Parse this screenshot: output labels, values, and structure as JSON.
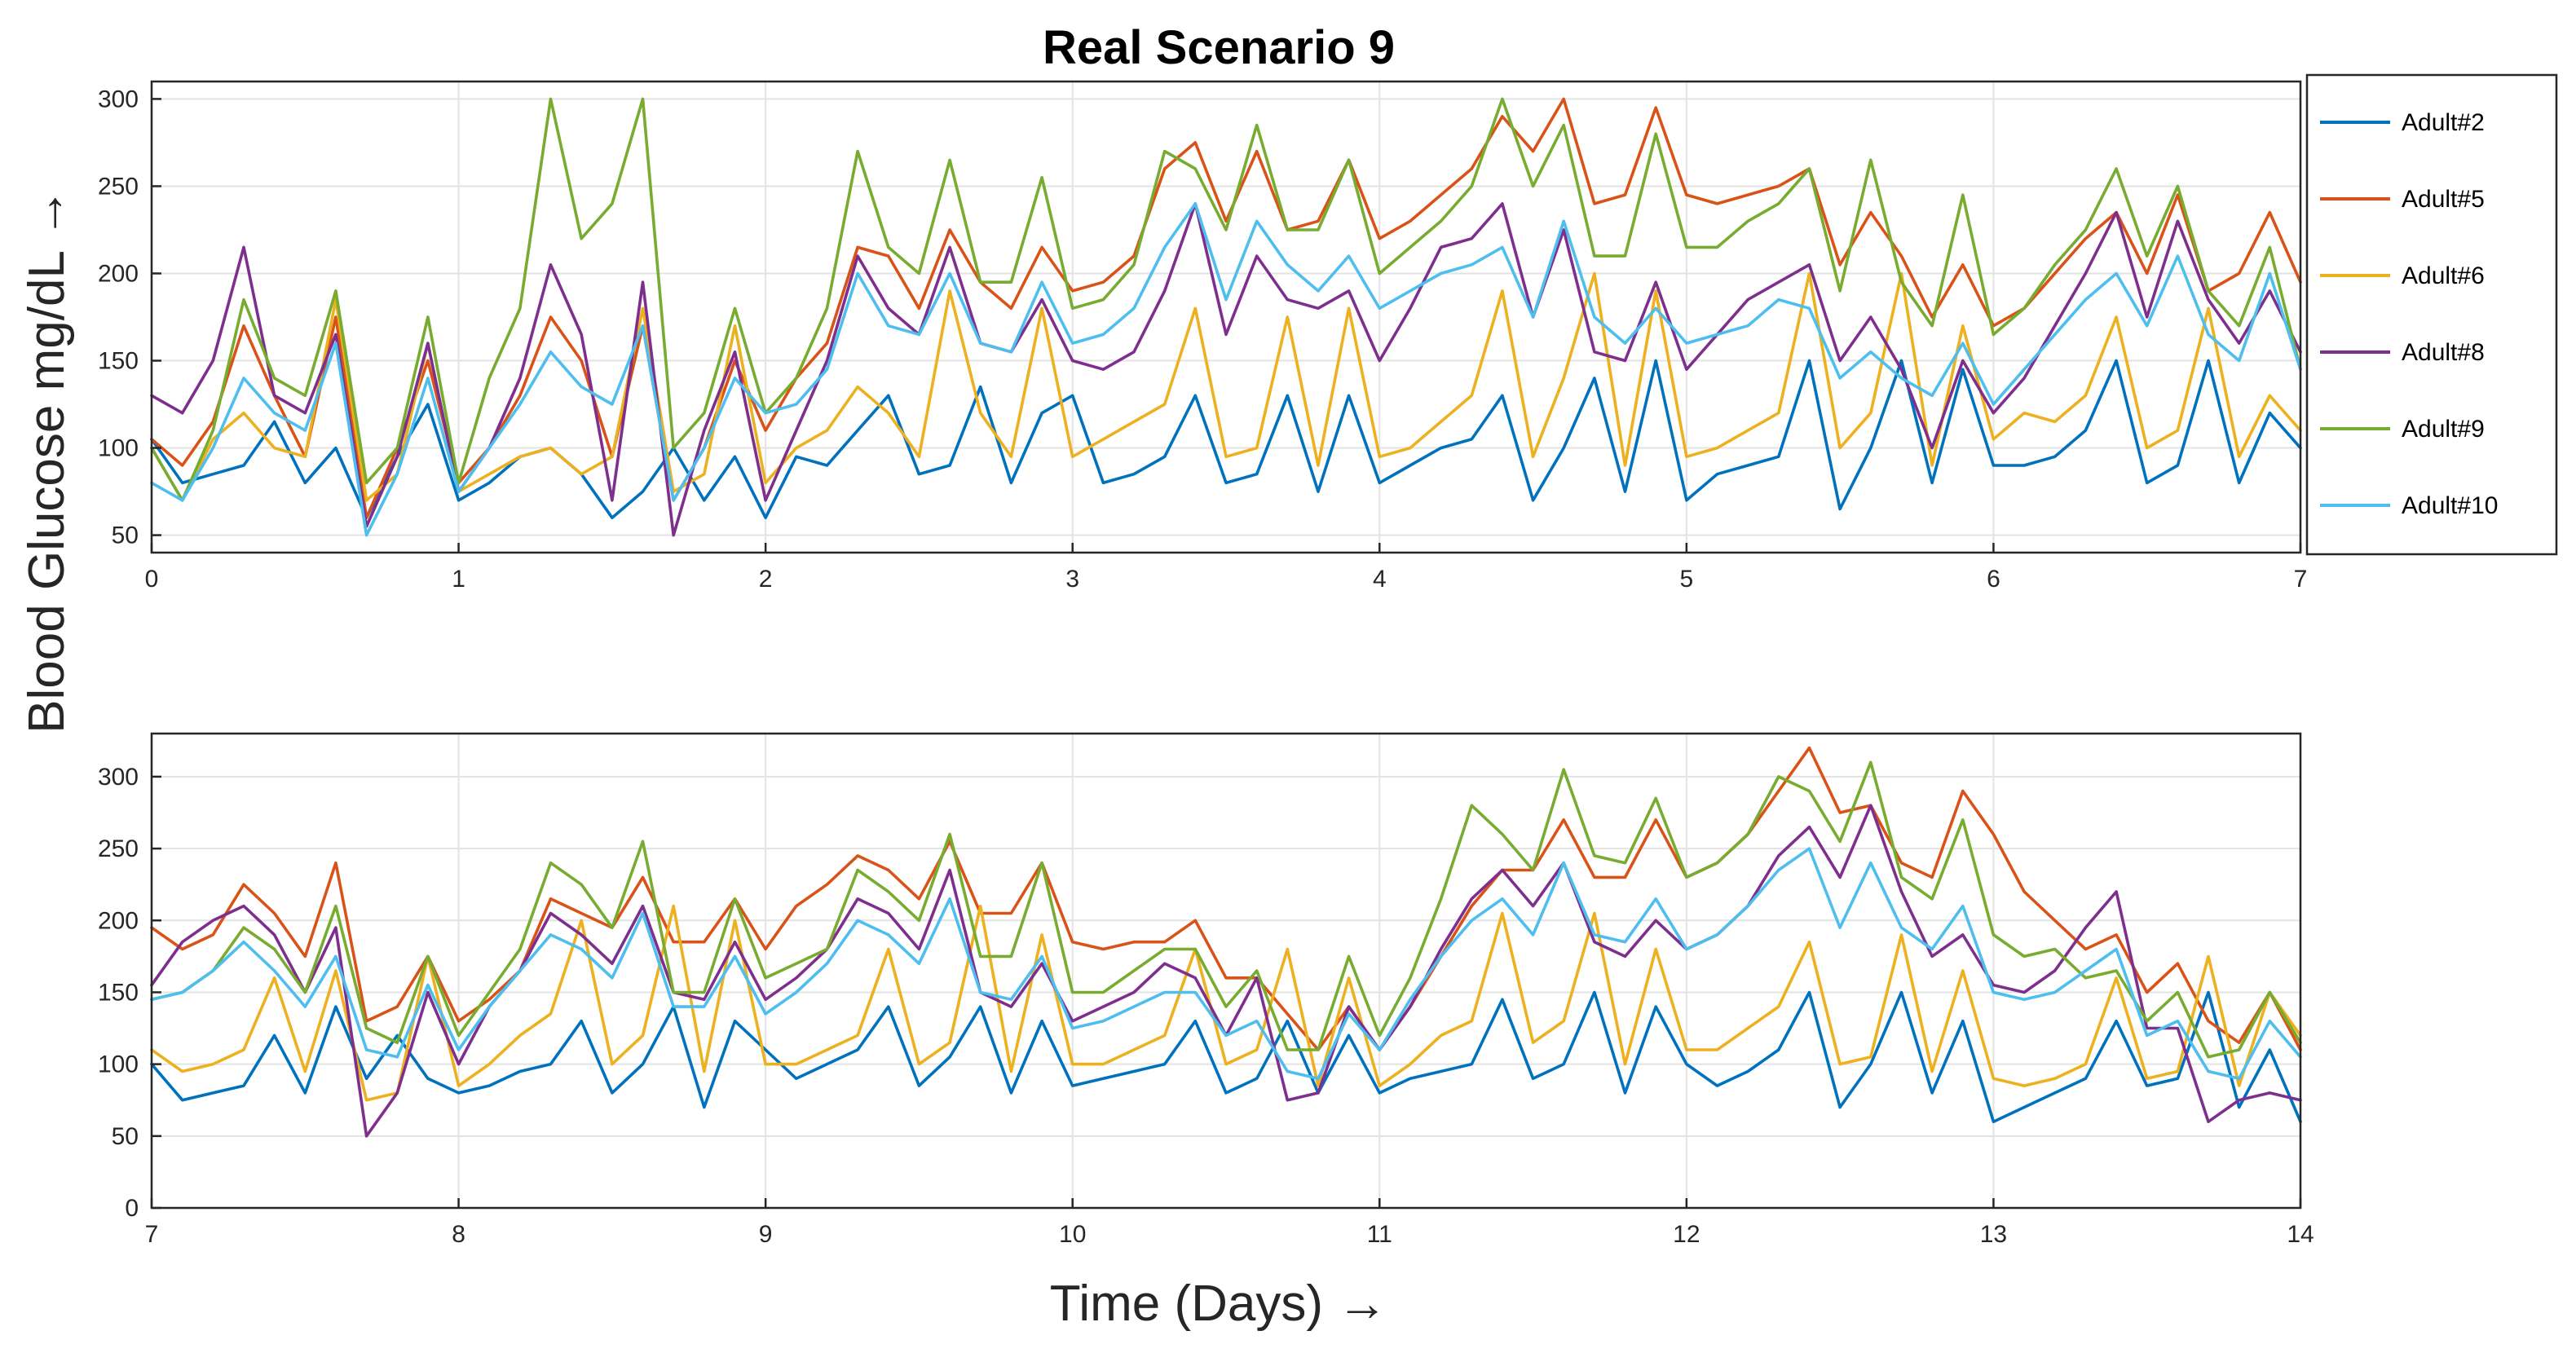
{
  "chart_data": {
    "type": "line",
    "title": "Real Scenario 9",
    "xlabel": "Time (Days) →",
    "ylabel": "Blood Glucose mg/dL →",
    "legend": {
      "placement": "right-of-top-panel",
      "entries": [
        "Adult#2",
        "Adult#5",
        "Adult#6",
        "Adult#8",
        "Adult#9",
        "Adult#10"
      ]
    },
    "grid": true,
    "panels": [
      {
        "name": "top",
        "xlim": [
          0,
          7
        ],
        "ylim": [
          40,
          310
        ],
        "xticks": [
          "0",
          "1",
          "2",
          "3",
          "4",
          "5",
          "6",
          "7"
        ],
        "yticks": [
          "50",
          "100",
          "150",
          "200",
          "250",
          "300"
        ]
      },
      {
        "name": "bottom",
        "xlim": [
          7,
          14
        ],
        "ylim": [
          0,
          330
        ],
        "xticks": [
          "7",
          "8",
          "9",
          "10",
          "11",
          "12",
          "13",
          "14"
        ],
        "yticks": [
          "0",
          "50",
          "100",
          "150",
          "200",
          "250",
          "300"
        ]
      }
    ],
    "x": [
      0,
      0.1,
      0.2,
      0.3,
      0.4,
      0.5,
      0.6,
      0.7,
      0.8,
      0.9,
      1,
      1.1,
      1.2,
      1.3,
      1.4,
      1.5,
      1.6,
      1.7,
      1.8,
      1.9,
      2,
      2.1,
      2.2,
      2.3,
      2.4,
      2.5,
      2.6,
      2.7,
      2.8,
      2.9,
      3,
      3.1,
      3.2,
      3.3,
      3.4,
      3.5,
      3.6,
      3.7,
      3.8,
      3.9,
      4,
      4.1,
      4.2,
      4.3,
      4.4,
      4.5,
      4.6,
      4.7,
      4.8,
      4.9,
      5,
      5.1,
      5.2,
      5.3,
      5.4,
      5.5,
      5.6,
      5.7,
      5.8,
      5.9,
      6,
      6.1,
      6.2,
      6.3,
      6.4,
      6.5,
      6.6,
      6.7,
      6.8,
      6.9,
      7,
      7.1,
      7.2,
      7.3,
      7.4,
      7.5,
      7.6,
      7.7,
      7.8,
      7.9,
      8,
      8.1,
      8.2,
      8.3,
      8.4,
      8.5,
      8.6,
      8.7,
      8.8,
      8.9,
      9,
      9.1,
      9.2,
      9.3,
      9.4,
      9.5,
      9.6,
      9.7,
      9.8,
      9.9,
      10,
      10.1,
      10.2,
      10.3,
      10.4,
      10.5,
      10.6,
      10.7,
      10.8,
      10.9,
      11,
      11.1,
      11.2,
      11.3,
      11.4,
      11.5,
      11.6,
      11.7,
      11.8,
      11.9,
      12,
      12.1,
      12.2,
      12.3,
      12.4,
      12.5,
      12.6,
      12.7,
      12.8,
      12.9,
      13,
      13.1,
      13.2,
      13.3,
      13.4,
      13.5,
      13.6,
      13.7,
      13.8,
      13.9,
      14
    ],
    "series": [
      {
        "name": "Adult#2",
        "color": "#0072BD",
        "values": [
          105,
          80,
          85,
          90,
          115,
          80,
          100,
          60,
          95,
          125,
          70,
          80,
          95,
          100,
          85,
          60,
          75,
          100,
          70,
          95,
          60,
          95,
          90,
          110,
          130,
          85,
          90,
          135,
          80,
          120,
          130,
          80,
          85,
          95,
          130,
          80,
          85,
          130,
          75,
          130,
          80,
          90,
          100,
          105,
          130,
          70,
          100,
          140,
          75,
          150,
          70,
          85,
          90,
          95,
          150,
          65,
          100,
          150,
          80,
          145,
          90,
          90,
          95,
          110,
          150,
          80,
          90,
          150,
          80,
          120,
          100,
          75,
          80,
          85,
          120,
          80,
          140,
          90,
          120,
          90,
          80,
          85,
          95,
          100,
          130,
          80,
          100,
          140,
          70,
          130,
          110,
          90,
          100,
          110,
          140,
          85,
          105,
          140,
          80,
          130,
          85,
          90,
          95,
          100,
          130,
          80,
          90,
          130,
          80,
          120,
          80,
          90,
          95,
          100,
          145,
          90,
          100,
          150,
          80,
          140,
          100,
          85,
          95,
          110,
          150,
          70,
          100,
          150,
          80,
          130,
          60,
          70,
          80,
          90,
          130,
          85,
          90,
          150,
          70,
          110,
          60
        ]
      },
      {
        "name": "Adult#5",
        "color": "#D95319",
        "values": [
          105,
          90,
          115,
          170,
          130,
          95,
          175,
          60,
          100,
          150,
          80,
          100,
          130,
          175,
          150,
          95,
          170,
          70,
          100,
          150,
          110,
          140,
          160,
          215,
          210,
          180,
          225,
          195,
          180,
          215,
          190,
          195,
          210,
          260,
          275,
          230,
          270,
          225,
          230,
          265,
          220,
          230,
          245,
          260,
          290,
          270,
          300,
          240,
          245,
          295,
          245,
          240,
          245,
          250,
          260,
          205,
          235,
          210,
          175,
          205,
          170,
          180,
          200,
          220,
          235,
          200,
          245,
          190,
          200,
          235,
          195,
          180,
          190,
          225,
          205,
          175,
          240,
          130,
          140,
          175,
          130,
          145,
          165,
          215,
          205,
          195,
          230,
          185,
          185,
          215,
          180,
          210,
          225,
          245,
          235,
          215,
          255,
          205,
          205,
          240,
          185,
          180,
          185,
          185,
          200,
          160,
          160,
          135,
          110,
          140,
          110,
          140,
          175,
          210,
          235,
          235,
          270,
          230,
          230,
          270,
          230,
          240,
          260,
          290,
          320,
          275,
          280,
          240,
          230,
          290,
          260,
          220,
          200,
          180,
          190,
          150,
          170,
          130,
          115,
          150,
          110
        ]
      },
      {
        "name": "Adult#6",
        "color": "#EDB120",
        "values": [
          100,
          70,
          105,
          120,
          100,
          95,
          185,
          70,
          85,
          160,
          75,
          85,
          95,
          100,
          85,
          95,
          180,
          75,
          85,
          170,
          80,
          100,
          110,
          135,
          120,
          95,
          190,
          120,
          95,
          180,
          95,
          105,
          115,
          125,
          180,
          95,
          100,
          175,
          90,
          180,
          95,
          100,
          115,
          130,
          190,
          95,
          140,
          200,
          90,
          190,
          95,
          100,
          110,
          120,
          200,
          100,
          120,
          200,
          90,
          170,
          105,
          120,
          115,
          130,
          175,
          100,
          110,
          180,
          95,
          130,
          110,
          95,
          100,
          110,
          160,
          95,
          165,
          75,
          80,
          175,
          85,
          100,
          120,
          135,
          200,
          100,
          120,
          210,
          95,
          200,
          100,
          100,
          110,
          120,
          180,
          100,
          115,
          210,
          95,
          190,
          100,
          100,
          110,
          120,
          180,
          100,
          110,
          180,
          85,
          160,
          85,
          100,
          120,
          130,
          205,
          115,
          130,
          205,
          100,
          180,
          110,
          110,
          125,
          140,
          185,
          100,
          105,
          190,
          95,
          165,
          90,
          85,
          90,
          100,
          160,
          90,
          95,
          175,
          85,
          150,
          120
        ]
      },
      {
        "name": "Adult#8",
        "color": "#7E2F8E",
        "values": [
          130,
          120,
          150,
          215,
          130,
          120,
          165,
          55,
          95,
          160,
          75,
          100,
          140,
          205,
          165,
          70,
          195,
          50,
          110,
          155,
          70,
          110,
          150,
          210,
          180,
          165,
          215,
          160,
          155,
          185,
          150,
          145,
          155,
          190,
          240,
          165,
          210,
          185,
          180,
          190,
          150,
          180,
          215,
          220,
          240,
          175,
          225,
          155,
          150,
          195,
          145,
          165,
          185,
          195,
          205,
          150,
          175,
          145,
          100,
          150,
          120,
          140,
          170,
          200,
          235,
          175,
          230,
          185,
          160,
          190,
          155,
          185,
          200,
          210,
          190,
          150,
          195,
          50,
          80,
          150,
          100,
          140,
          165,
          205,
          190,
          170,
          210,
          150,
          145,
          185,
          145,
          160,
          180,
          215,
          205,
          180,
          235,
          150,
          140,
          170,
          130,
          140,
          150,
          170,
          160,
          120,
          160,
          75,
          80,
          140,
          110,
          140,
          180,
          215,
          235,
          210,
          240,
          185,
          175,
          200,
          180,
          190,
          210,
          245,
          265,
          230,
          280,
          220,
          175,
          190,
          155,
          150,
          165,
          195,
          220,
          125,
          125,
          60,
          75,
          80,
          75
        ]
      },
      {
        "name": "Adult#9",
        "color": "#77AC30",
        "values": [
          100,
          70,
          110,
          185,
          140,
          130,
          190,
          80,
          100,
          175,
          80,
          140,
          180,
          300,
          220,
          240,
          300,
          100,
          120,
          180,
          120,
          140,
          180,
          270,
          215,
          200,
          265,
          195,
          195,
          255,
          180,
          185,
          205,
          270,
          260,
          225,
          285,
          225,
          225,
          265,
          200,
          215,
          230,
          250,
          300,
          250,
          285,
          210,
          210,
          280,
          215,
          215,
          230,
          240,
          260,
          190,
          265,
          195,
          170,
          245,
          165,
          180,
          205,
          225,
          260,
          210,
          250,
          190,
          170,
          215,
          145,
          150,
          165,
          195,
          180,
          150,
          210,
          125,
          115,
          175,
          120,
          150,
          180,
          240,
          225,
          195,
          255,
          150,
          150,
          215,
          160,
          170,
          180,
          235,
          220,
          200,
          260,
          175,
          175,
          240,
          150,
          150,
          165,
          180,
          180,
          140,
          165,
          110,
          110,
          175,
          120,
          160,
          215,
          280,
          260,
          235,
          305,
          245,
          240,
          285,
          230,
          240,
          260,
          300,
          290,
          255,
          310,
          230,
          215,
          270,
          190,
          175,
          180,
          160,
          165,
          130,
          150,
          105,
          110,
          150,
          115
        ]
      },
      {
        "name": "Adult#10",
        "color": "#4DBEEE",
        "values": [
          80,
          70,
          100,
          140,
          120,
          110,
          160,
          50,
          85,
          140,
          75,
          100,
          125,
          155,
          135,
          125,
          170,
          70,
          100,
          140,
          120,
          125,
          145,
          200,
          170,
          165,
          200,
          160,
          155,
          195,
          160,
          165,
          180,
          215,
          240,
          185,
          230,
          205,
          190,
          210,
          180,
          190,
          200,
          205,
          215,
          175,
          230,
          175,
          160,
          180,
          160,
          165,
          170,
          185,
          180,
          140,
          155,
          140,
          130,
          160,
          125,
          145,
          165,
          185,
          200,
          170,
          210,
          165,
          150,
          200,
          145,
          150,
          165,
          185,
          165,
          140,
          175,
          110,
          105,
          155,
          110,
          140,
          165,
          190,
          180,
          160,
          205,
          140,
          140,
          175,
          135,
          150,
          170,
          200,
          190,
          170,
          215,
          150,
          145,
          175,
          125,
          130,
          140,
          150,
          150,
          120,
          130,
          95,
          90,
          135,
          110,
          145,
          175,
          200,
          215,
          190,
          240,
          190,
          185,
          215,
          180,
          190,
          210,
          235,
          250,
          195,
          240,
          195,
          180,
          210,
          150,
          145,
          150,
          165,
          180,
          120,
          130,
          95,
          90,
          130,
          105
        ]
      }
    ]
  }
}
